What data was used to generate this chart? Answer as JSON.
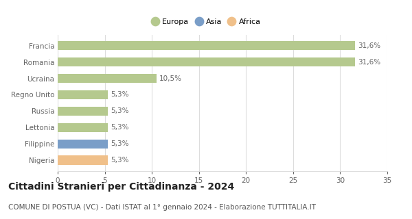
{
  "categories": [
    "Nigeria",
    "Filippine",
    "Lettonia",
    "Russia",
    "Regno Unito",
    "Ucraina",
    "Romania",
    "Francia"
  ],
  "values": [
    5.3,
    5.3,
    5.3,
    5.3,
    5.3,
    10.5,
    31.6,
    31.6
  ],
  "labels": [
    "5,3%",
    "5,3%",
    "5,3%",
    "5,3%",
    "5,3%",
    "10,5%",
    "31,6%",
    "31,6%"
  ],
  "colors": [
    "#f0c08a",
    "#7a9ec8",
    "#b5c98e",
    "#b5c98e",
    "#b5c98e",
    "#b5c98e",
    "#b5c98e",
    "#b5c98e"
  ],
  "legend_labels": [
    "Europa",
    "Asia",
    "Africa"
  ],
  "legend_colors": [
    "#b5c98e",
    "#7a9ec8",
    "#f0c08a"
  ],
  "xlim": [
    0,
    35
  ],
  "xticks": [
    0,
    5,
    10,
    15,
    20,
    25,
    30,
    35
  ],
  "title": "Cittadini Stranieri per Cittadinanza - 2024",
  "subtitle": "COMUNE DI POSTUA (VC) - Dati ISTAT al 1° gennaio 2024 - Elaborazione TUTTITALIA.IT",
  "title_fontsize": 10,
  "subtitle_fontsize": 7.5,
  "bg_color": "#ffffff",
  "grid_color": "#dddddd",
  "bar_height": 0.55,
  "label_fontsize": 7.5,
  "tick_fontsize": 7.5,
  "ylabel_color": "#666666",
  "xlabel_color": "#666666"
}
